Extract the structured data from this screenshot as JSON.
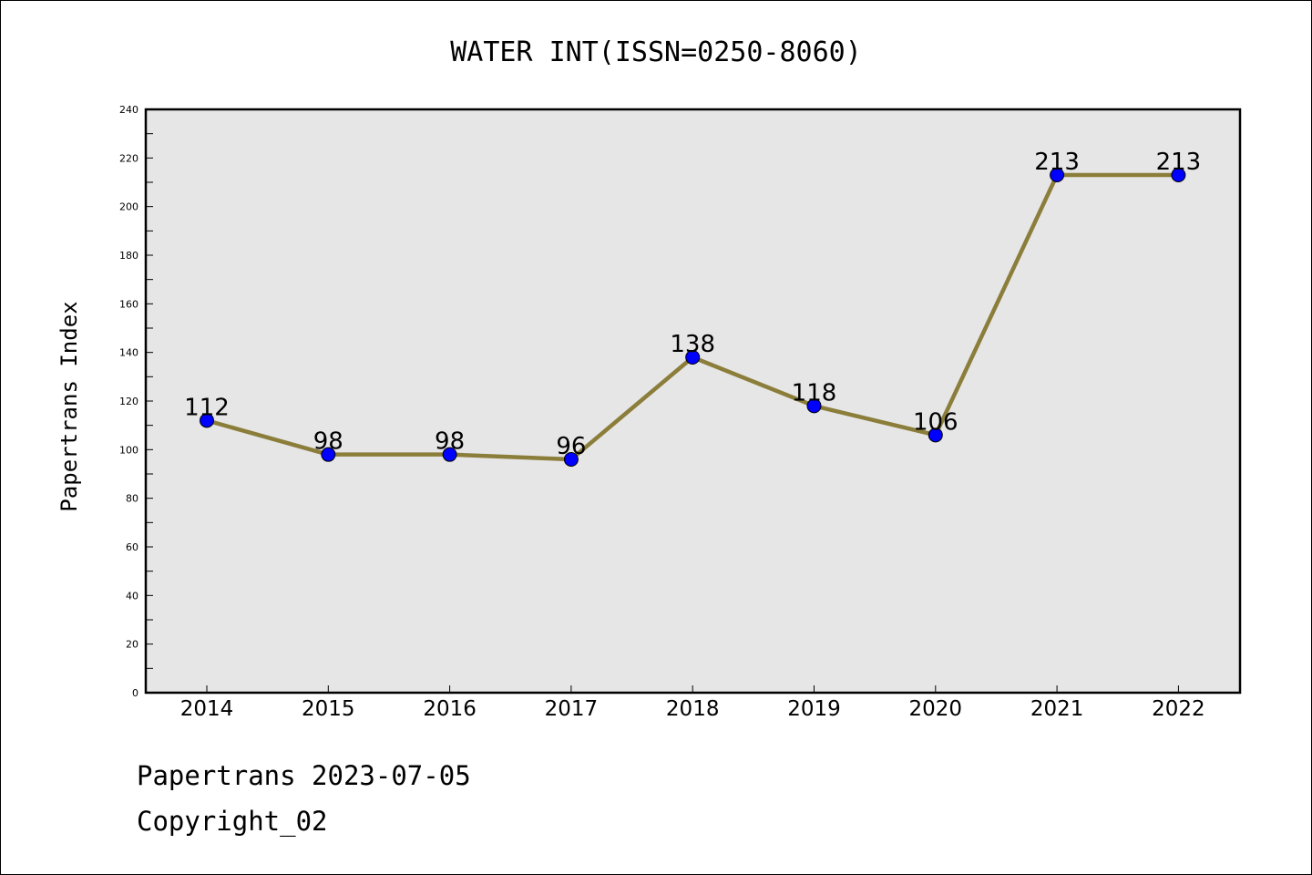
{
  "chart_data": {
    "type": "line",
    "title": "WATER INT(ISSN=0250-8060)",
    "xlabel": "",
    "ylabel": "Papertrans Index",
    "categories": [
      "2014",
      "2015",
      "2016",
      "2017",
      "2018",
      "2019",
      "2020",
      "2021",
      "2022"
    ],
    "values": [
      112,
      98,
      98,
      96,
      138,
      118,
      106,
      213,
      213
    ],
    "data_labels": [
      "112",
      "98",
      "98",
      "96",
      "138",
      "118",
      "106",
      "213",
      "213"
    ],
    "ylim": [
      0,
      240
    ],
    "yticks": [
      0,
      20,
      40,
      60,
      80,
      100,
      120,
      140,
      160,
      180,
      200,
      220,
      240
    ],
    "grid": false,
    "colors": {
      "line": "#8b7d3a",
      "marker": "#0000ff",
      "plot_background": "#e6e6e6"
    }
  },
  "footer": {
    "source": "Papertrans 2023-07-05",
    "copyright": "Copyright_02"
  }
}
